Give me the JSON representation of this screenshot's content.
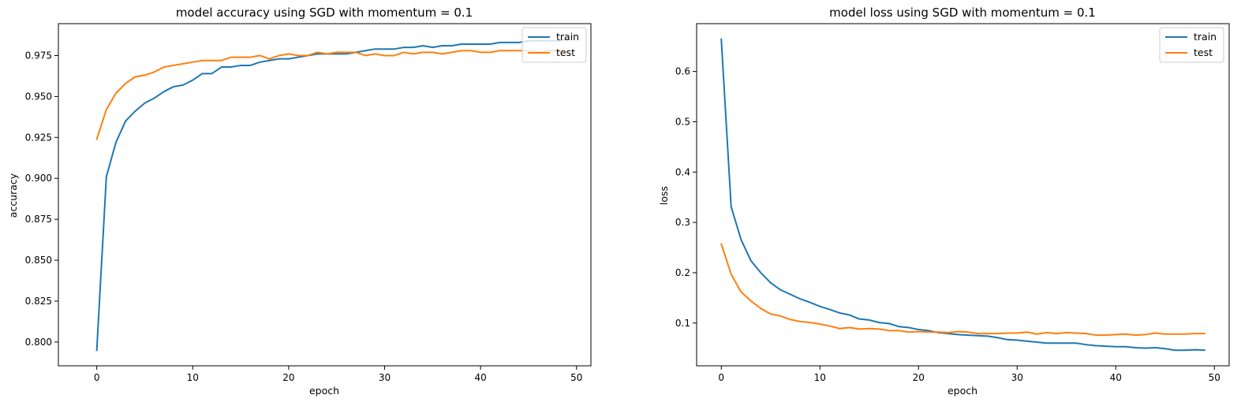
{
  "chart_data": [
    {
      "type": "line",
      "title": "model accuracy using SGD with momentum = 0.1",
      "xlabel": "epoch",
      "ylabel": "accuracy",
      "xlim": [
        -4,
        51.5
      ],
      "ylim": [
        0.7855,
        0.9945
      ],
      "x_ticks": [
        0,
        10,
        20,
        30,
        40,
        50
      ],
      "y_ticks": [
        0.8,
        0.825,
        0.85,
        0.875,
        0.9,
        0.925,
        0.95,
        0.975
      ],
      "y_tick_labels": [
        "0.800",
        "0.825",
        "0.850",
        "0.875",
        "0.900",
        "0.925",
        "0.950",
        "0.975"
      ],
      "grid": false,
      "legend": "upper right",
      "series": [
        {
          "name": "train",
          "color": "#1f77b4",
          "values": [
            0.795,
            0.901,
            0.922,
            0.935,
            0.941,
            0.946,
            0.949,
            0.953,
            0.956,
            0.957,
            0.96,
            0.964,
            0.964,
            0.968,
            0.968,
            0.969,
            0.969,
            0.971,
            0.972,
            0.973,
            0.973,
            0.974,
            0.975,
            0.976,
            0.976,
            0.976,
            0.976,
            0.977,
            0.978,
            0.979,
            0.979,
            0.979,
            0.98,
            0.98,
            0.981,
            0.98,
            0.981,
            0.981,
            0.982,
            0.982,
            0.982,
            0.982,
            0.983,
            0.983,
            0.983,
            0.984,
            0.984,
            0.984,
            0.984,
            0.985
          ]
        },
        {
          "name": "test",
          "color": "#ff7f0e",
          "values": [
            0.924,
            0.942,
            0.952,
            0.958,
            0.962,
            0.963,
            0.965,
            0.968,
            0.969,
            0.97,
            0.971,
            0.972,
            0.972,
            0.972,
            0.974,
            0.974,
            0.974,
            0.975,
            0.973,
            0.975,
            0.976,
            0.975,
            0.975,
            0.977,
            0.976,
            0.977,
            0.977,
            0.977,
            0.975,
            0.976,
            0.975,
            0.975,
            0.977,
            0.976,
            0.977,
            0.977,
            0.976,
            0.977,
            0.978,
            0.978,
            0.977,
            0.977,
            0.978,
            0.978,
            0.978,
            0.978,
            0.977,
            0.978,
            0.978,
            0.978
          ]
        }
      ]
    },
    {
      "type": "line",
      "title": "model loss using SGD with momentum = 0.1",
      "xlabel": "epoch",
      "ylabel": "loss",
      "xlim": [
        -2.5,
        51.5
      ],
      "ylim": [
        0.015,
        0.695
      ],
      "x_ticks": [
        0,
        10,
        20,
        30,
        40,
        50
      ],
      "y_ticks": [
        0.1,
        0.2,
        0.3,
        0.4,
        0.5,
        0.6
      ],
      "y_tick_labels": [
        "0.1",
        "0.2",
        "0.3",
        "0.4",
        "0.5",
        "0.6"
      ],
      "grid": false,
      "legend": "upper right",
      "series": [
        {
          "name": "train",
          "color": "#1f77b4",
          "values": [
            0.664,
            0.331,
            0.266,
            0.224,
            0.2,
            0.18,
            0.166,
            0.157,
            0.148,
            0.141,
            0.133,
            0.127,
            0.12,
            0.116,
            0.108,
            0.106,
            0.101,
            0.099,
            0.093,
            0.091,
            0.087,
            0.085,
            0.081,
            0.079,
            0.077,
            0.076,
            0.075,
            0.074,
            0.071,
            0.067,
            0.066,
            0.064,
            0.062,
            0.06,
            0.06,
            0.06,
            0.06,
            0.057,
            0.055,
            0.054,
            0.053,
            0.053,
            0.051,
            0.05,
            0.051,
            0.049,
            0.046,
            0.046,
            0.047,
            0.046
          ]
        },
        {
          "name": "test",
          "color": "#ff7f0e",
          "values": [
            0.257,
            0.197,
            0.162,
            0.144,
            0.129,
            0.118,
            0.114,
            0.107,
            0.103,
            0.101,
            0.098,
            0.094,
            0.089,
            0.091,
            0.088,
            0.089,
            0.088,
            0.085,
            0.085,
            0.082,
            0.083,
            0.082,
            0.082,
            0.081,
            0.083,
            0.082,
            0.079,
            0.079,
            0.079,
            0.08,
            0.08,
            0.082,
            0.078,
            0.081,
            0.079,
            0.081,
            0.08,
            0.079,
            0.076,
            0.076,
            0.077,
            0.078,
            0.076,
            0.077,
            0.08,
            0.078,
            0.078,
            0.078,
            0.079,
            0.079
          ]
        }
      ]
    }
  ]
}
